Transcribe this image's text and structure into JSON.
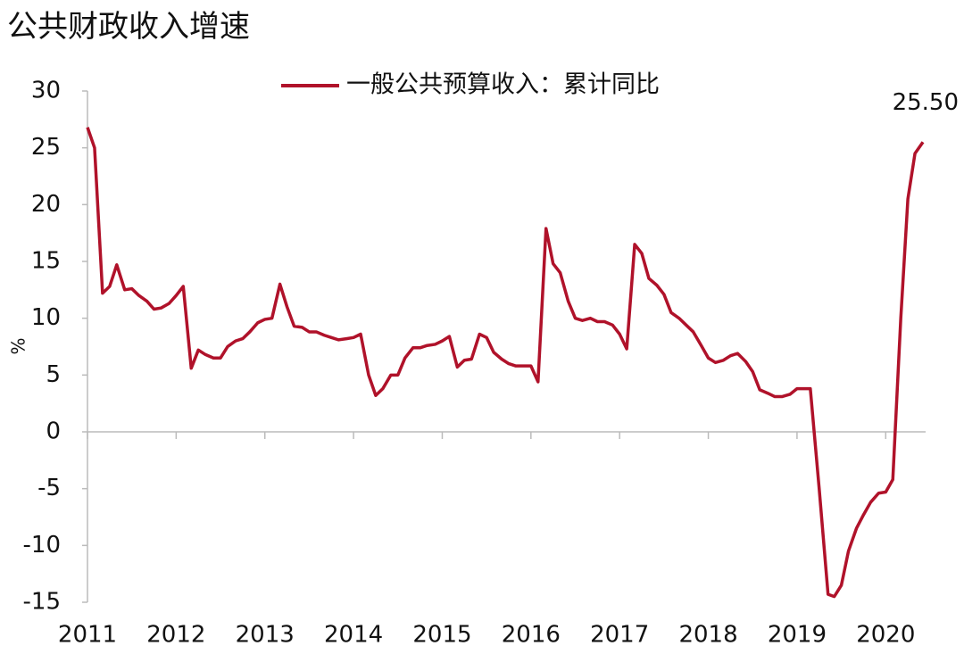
{
  "chart_data": {
    "type": "line",
    "title": "公共财政收入增速",
    "y_label": "%",
    "annotation": "25.50",
    "xlim": [
      2011,
      2020.45
    ],
    "xticks": [
      2011,
      2012,
      2013,
      2014,
      2015,
      2016,
      2017,
      2018,
      2019,
      2020
    ],
    "ylim": [
      -15,
      30
    ],
    "yticks": [
      -15,
      -10,
      -5,
      0,
      5,
      10,
      15,
      20,
      25,
      30
    ],
    "legend": "top",
    "x": [
      2011.0,
      2011.08,
      2011.17,
      2011.25,
      2011.33,
      2011.42,
      2011.5,
      2011.58,
      2011.67,
      2011.75,
      2011.83,
      2011.92,
      2012.0,
      2012.08,
      2012.17,
      2012.25,
      2012.33,
      2012.42,
      2012.5,
      2012.58,
      2012.67,
      2012.75,
      2012.83,
      2012.92,
      2013.0,
      2013.08,
      2013.17,
      2013.25,
      2013.33,
      2013.42,
      2013.5,
      2013.58,
      2013.67,
      2013.75,
      2013.83,
      2013.92,
      2014.0,
      2014.08,
      2014.17,
      2014.25,
      2014.33,
      2014.42,
      2014.5,
      2014.58,
      2014.67,
      2014.75,
      2014.83,
      2014.92,
      2015.0,
      2015.08,
      2015.17,
      2015.25,
      2015.33,
      2015.42,
      2015.5,
      2015.58,
      2015.67,
      2015.75,
      2015.83,
      2015.92,
      2016.0,
      2016.08,
      2016.17,
      2016.25,
      2016.33,
      2016.42,
      2016.5,
      2016.58,
      2016.67,
      2016.75,
      2016.83,
      2016.92,
      2017.0,
      2017.08,
      2017.17,
      2017.25,
      2017.33,
      2017.42,
      2017.5,
      2017.58,
      2017.67,
      2017.75,
      2017.83,
      2017.92,
      2018.0,
      2018.08,
      2018.17,
      2018.25,
      2018.33,
      2018.42,
      2018.5,
      2018.58,
      2018.67,
      2018.75,
      2018.83,
      2018.92,
      2019.0,
      2019.08,
      2019.15,
      2019.25,
      2019.35,
      2019.42,
      2019.5,
      2019.58,
      2019.67,
      2019.75,
      2019.83,
      2019.92,
      2020.0,
      2020.08,
      2020.17,
      2020.25,
      2020.33,
      2020.42
    ],
    "series": [
      {
        "name": "一般公共预算收入：累计同比",
        "color": "#b0122a",
        "values": [
          26.8,
          25.0,
          12.2,
          12.8,
          14.7,
          12.5,
          12.6,
          12.0,
          11.5,
          10.8,
          10.9,
          11.3,
          12.0,
          12.8,
          5.6,
          7.2,
          6.8,
          6.5,
          6.5,
          7.5,
          8.0,
          8.2,
          8.8,
          9.6,
          9.9,
          10.0,
          13.0,
          11.0,
          9.3,
          9.2,
          8.8,
          8.8,
          8.5,
          8.3,
          8.1,
          8.2,
          8.3,
          8.6,
          5.0,
          3.2,
          3.8,
          5.0,
          5.0,
          6.5,
          7.4,
          7.4,
          7.6,
          7.7,
          8.0,
          8.4,
          5.7,
          6.3,
          6.4,
          8.6,
          8.3,
          7.0,
          6.4,
          6.0,
          5.8,
          5.8,
          5.8,
          4.4,
          17.9,
          14.8,
          14.0,
          11.5,
          10.0,
          9.8,
          10.0,
          9.7,
          9.7,
          9.4,
          8.6,
          7.3,
          16.5,
          15.7,
          13.5,
          12.9,
          12.1,
          10.5,
          10.0,
          9.4,
          8.8,
          7.6,
          6.5,
          6.1,
          6.3,
          6.7,
          6.9,
          6.2,
          5.3,
          3.7,
          3.4,
          3.1,
          3.1,
          3.3,
          3.8,
          3.8,
          3.8,
          -5.0,
          -14.3,
          -14.5,
          -13.5,
          -10.5,
          -8.5,
          -7.3,
          -6.2,
          -5.4,
          -5.3,
          -4.2,
          10.0,
          20.5,
          24.5,
          25.5
        ]
      }
    ]
  }
}
